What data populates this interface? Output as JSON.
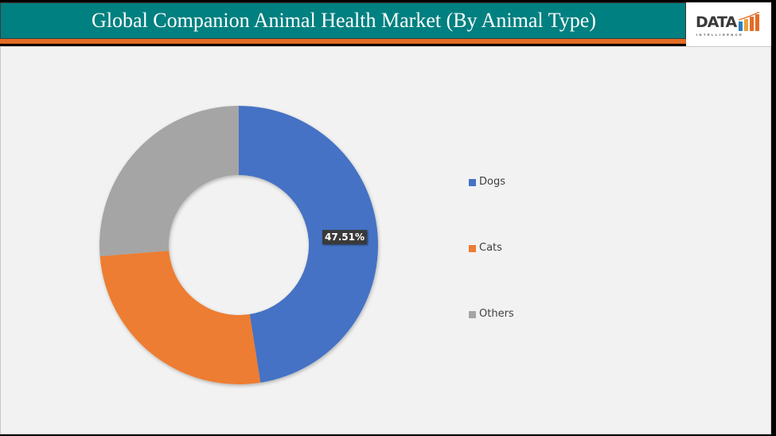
{
  "header": {
    "title": "Global Companion Animal Health Market (By Animal Type)",
    "logo_text": "DATA",
    "logo_subtext": "INTELLIGENCE"
  },
  "colors": {
    "header_bg": "#008080",
    "accent_bar": "#E46C24",
    "panel_bg": "#F2F2F2",
    "dogs": "#4472C4",
    "cats": "#ED7D31",
    "others": "#A5A5A5"
  },
  "legend": {
    "items": [
      {
        "label": "Dogs",
        "color": "#4472C4"
      },
      {
        "label": "Cats",
        "color": "#ED7D31"
      },
      {
        "label": "Others",
        "color": "#A5A5A5"
      }
    ]
  },
  "data_label": "47.51%",
  "chart_data": {
    "type": "pie",
    "subtype": "donut",
    "title": "Global Companion Animal Health Market (By Animal Type)",
    "categories": [
      "Dogs",
      "Cats",
      "Others"
    ],
    "values": [
      47.51,
      26.2,
      26.29
    ],
    "units": "%",
    "labeled_values": {
      "Dogs": "47.51%"
    },
    "colors": [
      "#4472C4",
      "#ED7D31",
      "#A5A5A5"
    ],
    "legend_position": "right",
    "start_angle_deg": 0,
    "direction": "clockwise"
  }
}
